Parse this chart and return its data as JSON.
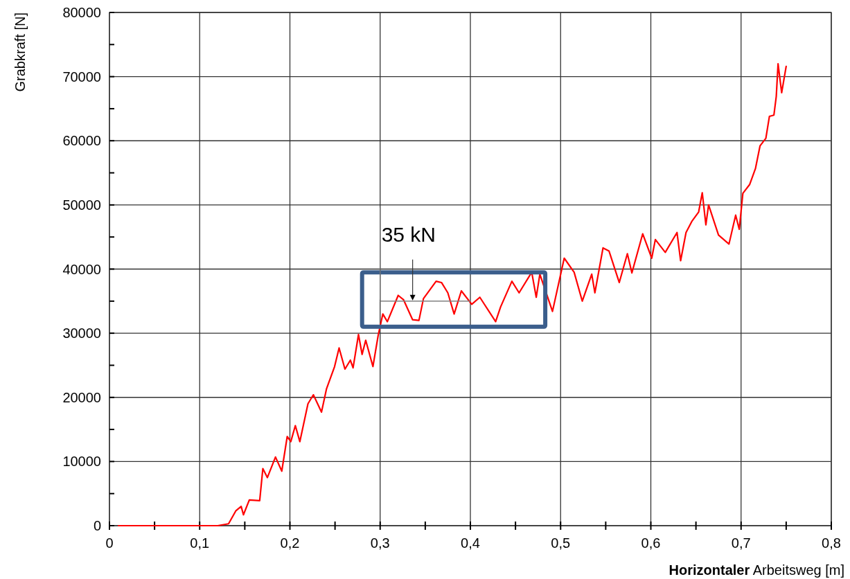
{
  "chart_data": {
    "type": "line",
    "xlabel": "Horizontaler Arbeitsweg [m]",
    "ylabel": "Grabkraft [N]",
    "ref_lines": [
      {
        "axis": "y",
        "value": 35000,
        "label": "35 kN",
        "color": "#808080"
      }
    ],
    "xlim": [
      0,
      0.8
    ],
    "ylim": [
      0,
      80000
    ],
    "xticks": [
      0,
      {
        "value": 0.05,
        "label": null
      },
      {
        "value": 0.1,
        "label": "0,1"
      },
      {
        "value": 0.15,
        "label": null
      },
      {
        "value": 0.2,
        "label": "0,2"
      },
      {
        "value": 0.25,
        "label": null
      },
      {
        "value": 0.3,
        "label": "0,3"
      },
      {
        "value": 0.35,
        "label": null
      },
      {
        "value": 0.4,
        "label": "0,4"
      },
      {
        "value": 0.45,
        "label": null
      },
      {
        "value": 0.5,
        "label": "0,5"
      },
      {
        "value": 0.55,
        "label": null
      },
      {
        "value": 0.6,
        "label": "0,6"
      },
      {
        "value": 0.65,
        "label": null
      },
      {
        "value": 0.7,
        "label": "0,7"
      },
      {
        "value": 0.75,
        "label": null
      },
      {
        "value": 0.8,
        "label": "0,8"
      }
    ],
    "yticks": [
      0,
      {
        "value": 5000,
        "label": null
      },
      10000,
      {
        "value": 15000,
        "label": null
      },
      20000,
      {
        "value": 25000,
        "label": null
      },
      30000,
      {
        "value": 35000,
        "label": null
      },
      40000,
      {
        "value": 45000,
        "label": null
      },
      50000,
      {
        "value": 55000,
        "label": null
      },
      60000,
      {
        "value": 65000,
        "label": null
      },
      70000,
      {
        "value": 75000,
        "label": null
      },
      80000
    ],
    "grid": true,
    "line_style": "solid",
    "marker": "none",
    "series": [
      {
        "color": "#ff0000",
        "x": [
          0.01,
          0.12,
          0.132,
          0.14,
          0.146,
          0.1485,
          0.155,
          0.1665,
          0.17,
          0.175,
          0.184,
          0.191,
          0.197,
          0.201,
          0.206,
          0.211,
          0.22,
          0.226,
          0.235,
          0.2405,
          0.2495,
          0.2545,
          0.261,
          0.267,
          0.27,
          0.276,
          0.28,
          0.284,
          0.292,
          0.298,
          0.303,
          0.308,
          0.32,
          0.326,
          0.336,
          0.343,
          0.348,
          0.362,
          0.368,
          0.375,
          0.382,
          0.39,
          0.4015,
          0.4105,
          0.428,
          0.4335,
          0.446,
          0.454,
          0.468,
          0.473,
          0.477,
          0.491,
          0.504,
          0.515,
          0.524,
          0.5345,
          0.538,
          0.547,
          0.5537,
          0.565,
          0.574,
          0.579,
          0.591,
          0.601,
          0.605,
          0.616,
          0.629,
          0.633,
          0.639,
          0.6457,
          0.653,
          0.657,
          0.661,
          0.664,
          0.675,
          0.6866,
          0.694,
          0.698,
          0.702,
          0.7096,
          0.716,
          0.721,
          0.7275,
          0.7314,
          0.7364,
          0.739,
          0.741,
          0.745,
          0.75
        ],
        "values": [
          0,
          0,
          300,
          2300,
          3000,
          1700,
          4000,
          3900,
          8900,
          7500,
          10700,
          8500,
          13900,
          13100,
          15600,
          13100,
          19000,
          20400,
          17700,
          21300,
          24800,
          27700,
          24400,
          25800,
          24600,
          29800,
          26700,
          28900,
          24800,
          29800,
          33000,
          31800,
          35900,
          35200,
          32100,
          32000,
          35400,
          38100,
          37900,
          36300,
          33000,
          36600,
          34500,
          35600,
          31800,
          34100,
          38100,
          36300,
          39500,
          35600,
          39200,
          33400,
          41700,
          39500,
          35000,
          39200,
          36300,
          43300,
          42800,
          37900,
          42400,
          39400,
          45500,
          41700,
          44600,
          42600,
          45700,
          41300,
          45700,
          47500,
          48900,
          51900,
          46900,
          50000,
          45300,
          43900,
          48400,
          46200,
          51800,
          53200,
          55700,
          59200,
          60400,
          63800,
          64000,
          66900,
          72000,
          67500,
          71600
        ]
      }
    ]
  }
}
